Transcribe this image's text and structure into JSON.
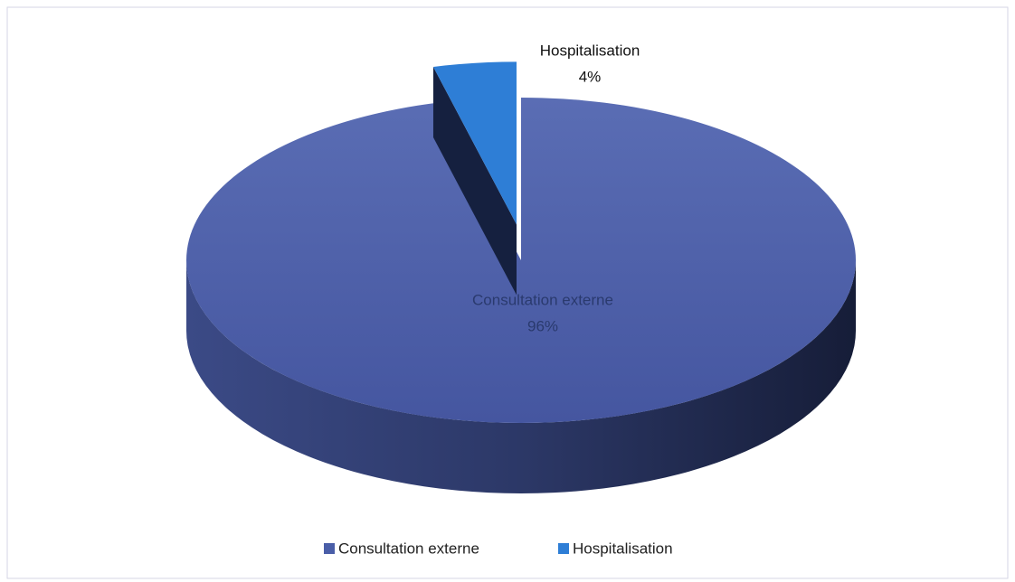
{
  "chart_data": {
    "type": "pie",
    "categories": [
      "Consultation externe",
      "Hospitalisation"
    ],
    "values": [
      96,
      4
    ],
    "value_labels": [
      "96%",
      "4%"
    ],
    "colors": [
      "#4a5ea8",
      "#2e7ed6"
    ],
    "legend": "bottom"
  }
}
